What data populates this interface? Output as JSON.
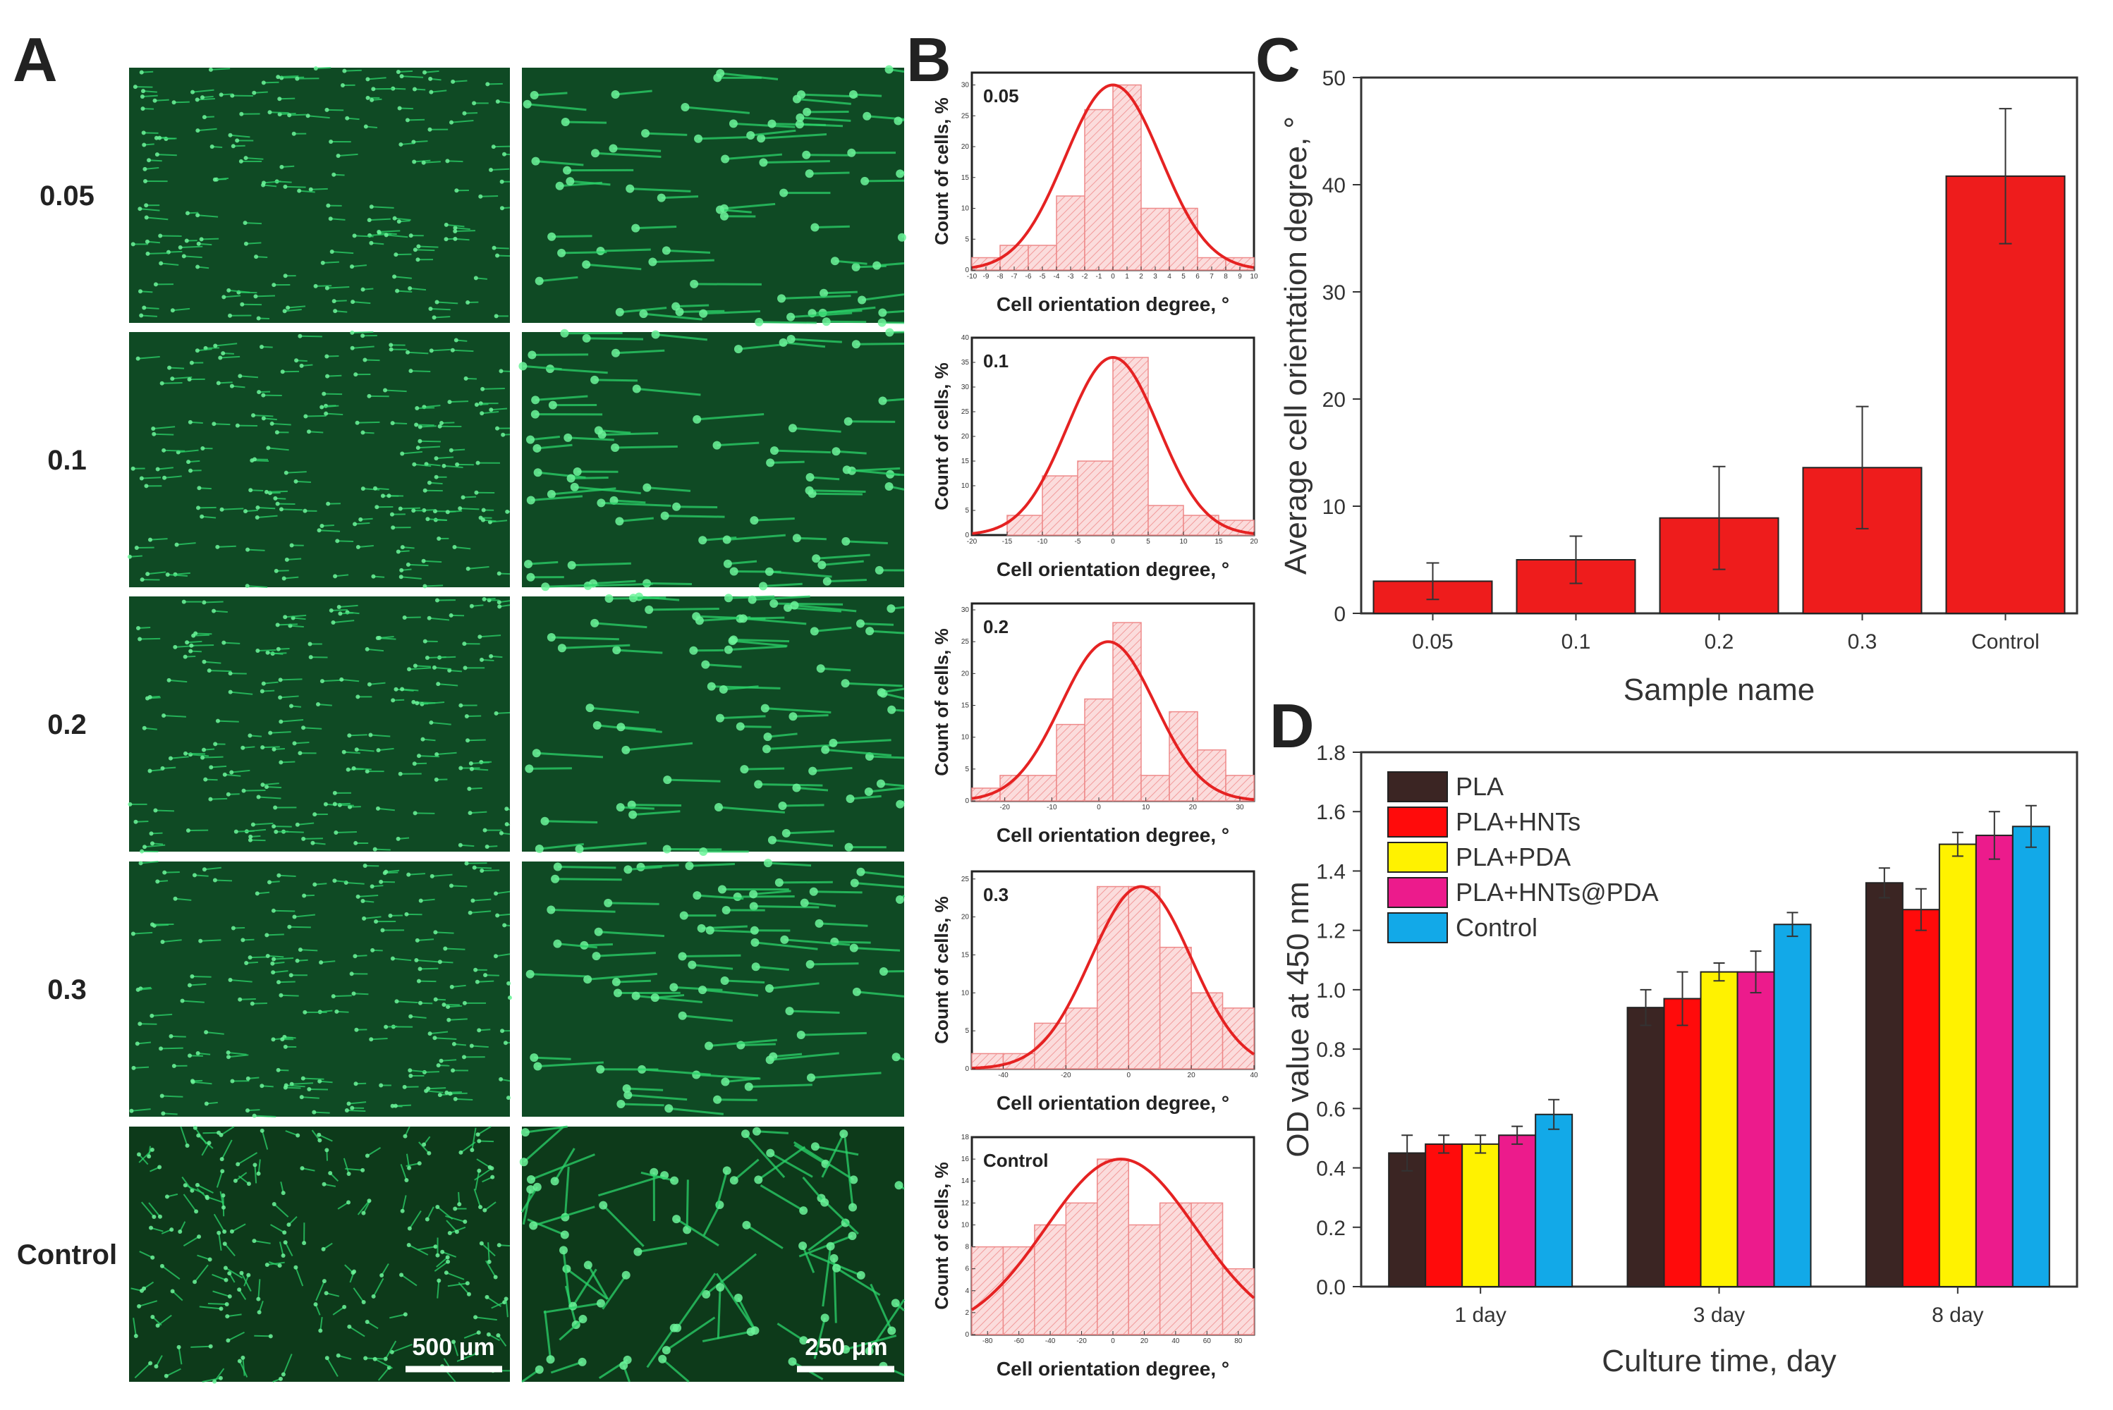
{
  "panel_labels": {
    "a": "A",
    "b": "B",
    "c": "C",
    "d": "D"
  },
  "panel_a": {
    "rows": [
      "0.05",
      "0.1",
      "0.2",
      "0.3",
      "Control"
    ],
    "scale_bars": [
      "500 μm",
      "250 μm"
    ],
    "fluorescence_color": "#2bd46a"
  },
  "panel_b": {
    "xlabel": "Cell orientation degree, °",
    "ylabel": "Count of cells, %",
    "curve_color": "#e52222",
    "bar_fill": "#fad6d6",
    "histograms": [
      {
        "label": "0.05",
        "x_ticks": [
          "-10",
          "-9",
          "-8",
          "-7",
          "-6",
          "-5",
          "-4",
          "-3",
          "-2",
          "-1",
          "0",
          "1",
          "2",
          "3",
          "4",
          "5",
          "6",
          "7",
          "8",
          "9",
          "10"
        ],
        "y_ticks": [
          "0",
          "5",
          "10",
          "15",
          "20",
          "25",
          "30"
        ],
        "ylim": [
          0,
          32
        ],
        "xlim": [
          -10,
          10
        ],
        "bin_width": 2,
        "bin_starts": [
          -10,
          -8,
          -6,
          -4,
          -2,
          0,
          2,
          4,
          6,
          8
        ],
        "values": [
          2,
          4,
          4,
          12,
          26,
          30,
          10,
          10,
          2,
          2
        ],
        "fit": {
          "mu": 0,
          "sigma": 3.4,
          "peak": 30
        }
      },
      {
        "label": "0.1",
        "x_ticks": [
          "-20",
          "-15",
          "-10",
          "-5",
          "0",
          "5",
          "10",
          "15",
          "20"
        ],
        "y_ticks": [
          "0",
          "5",
          "10",
          "15",
          "20",
          "25",
          "30",
          "35",
          "40"
        ],
        "ylim": [
          0,
          40
        ],
        "xlim": [
          -20,
          20
        ],
        "bin_width": 5,
        "bin_starts": [
          -20,
          -15,
          -10,
          -5,
          0,
          5,
          10,
          15
        ],
        "values": [
          0,
          4,
          12,
          15,
          36,
          6,
          4,
          3
        ],
        "fit": {
          "mu": 0,
          "sigma": 6.5,
          "peak": 36
        }
      },
      {
        "label": "0.2",
        "x_ticks": [
          "-20",
          "-10",
          "0",
          "10",
          "20",
          "30"
        ],
        "y_ticks": [
          "0",
          "5",
          "10",
          "15",
          "20",
          "25",
          "30"
        ],
        "ylim": [
          0,
          31
        ],
        "xlim": [
          -27,
          33
        ],
        "bin_width": 6,
        "bin_starts": [
          -27,
          -21,
          -15,
          -9,
          -3,
          3,
          9,
          15,
          21,
          27
        ],
        "values": [
          2,
          4,
          4,
          12,
          16,
          28,
          4,
          14,
          8,
          4
        ],
        "fit": {
          "mu": 2,
          "sigma": 10,
          "peak": 25
        }
      },
      {
        "label": "0.3",
        "x_ticks": [
          "-40",
          "-20",
          "0",
          "20",
          "40"
        ],
        "y_ticks": [
          "0",
          "5",
          "10",
          "15",
          "20",
          "25"
        ],
        "ylim": [
          0,
          26
        ],
        "xlim": [
          -50,
          40
        ],
        "bin_width": 10,
        "bin_starts": [
          -50,
          -40,
          -30,
          -20,
          -10,
          0,
          10,
          20,
          30
        ],
        "values": [
          2,
          2,
          6,
          8,
          24,
          24,
          16,
          10,
          8
        ],
        "fit": {
          "mu": 4,
          "sigma": 16,
          "peak": 24
        }
      },
      {
        "label": "Control",
        "x_ticks": [
          "-80",
          "-60",
          "-40",
          "-20",
          "0",
          "20",
          "40",
          "60",
          "80"
        ],
        "y_ticks": [
          "0",
          "2",
          "4",
          "6",
          "8",
          "10",
          "12",
          "14",
          "16",
          "18"
        ],
        "ylim": [
          0,
          18
        ],
        "xlim": [
          -90,
          90
        ],
        "bin_width": 20,
        "bin_starts": [
          -90,
          -70,
          -50,
          -30,
          -10,
          10,
          30,
          50,
          70
        ],
        "values": [
          8,
          8,
          10,
          12,
          16,
          10,
          12,
          12,
          6
        ],
        "fit": {
          "mu": 5,
          "sigma": 48,
          "peak": 16
        }
      }
    ]
  },
  "chart_data": [
    {
      "panel": "C",
      "type": "bar",
      "categories": [
        "0.05",
        "0.1",
        "0.2",
        "0.3",
        "Control"
      ],
      "values": [
        3.0,
        5.0,
        8.9,
        13.6,
        40.8
      ],
      "errors": [
        1.7,
        2.2,
        4.8,
        5.7,
        6.3
      ],
      "xlabel": "Sample name",
      "ylabel": "Average cell orientation degree, °",
      "ylim": [
        0,
        50
      ],
      "y_ticks": [
        "0",
        "10",
        "20",
        "30",
        "40",
        "50"
      ],
      "bar_color": "#ee1c1c"
    },
    {
      "panel": "D",
      "type": "bar",
      "categories": [
        "1 day",
        "3 day",
        "8 day"
      ],
      "series": [
        {
          "name": "PLA",
          "color": "#3b2523",
          "values": [
            0.45,
            0.94,
            1.36
          ],
          "errors": [
            0.06,
            0.06,
            0.05
          ]
        },
        {
          "name": "PLA+HNTs",
          "color": "#ff0b0b",
          "values": [
            0.48,
            0.97,
            1.27
          ],
          "errors": [
            0.03,
            0.09,
            0.07
          ]
        },
        {
          "name": "PLA+PDA",
          "color": "#fff200",
          "values": [
            0.48,
            1.06,
            1.49
          ],
          "errors": [
            0.03,
            0.03,
            0.04
          ]
        },
        {
          "name": "PLA+HNTs@PDA",
          "color": "#ec1b8c",
          "values": [
            0.51,
            1.06,
            1.52
          ],
          "errors": [
            0.03,
            0.07,
            0.08
          ]
        },
        {
          "name": "Control",
          "color": "#12a9e8",
          "values": [
            0.58,
            1.22,
            1.55
          ],
          "errors": [
            0.05,
            0.04,
            0.07
          ]
        }
      ],
      "xlabel": "Culture time, day",
      "ylabel": "OD value at 450 nm",
      "ylim": [
        0,
        1.8
      ],
      "y_ticks": [
        "0.0",
        "0.2",
        "0.4",
        "0.6",
        "0.8",
        "1.0",
        "1.2",
        "1.4",
        "1.6",
        "1.8"
      ],
      "legend": "top-left"
    }
  ]
}
